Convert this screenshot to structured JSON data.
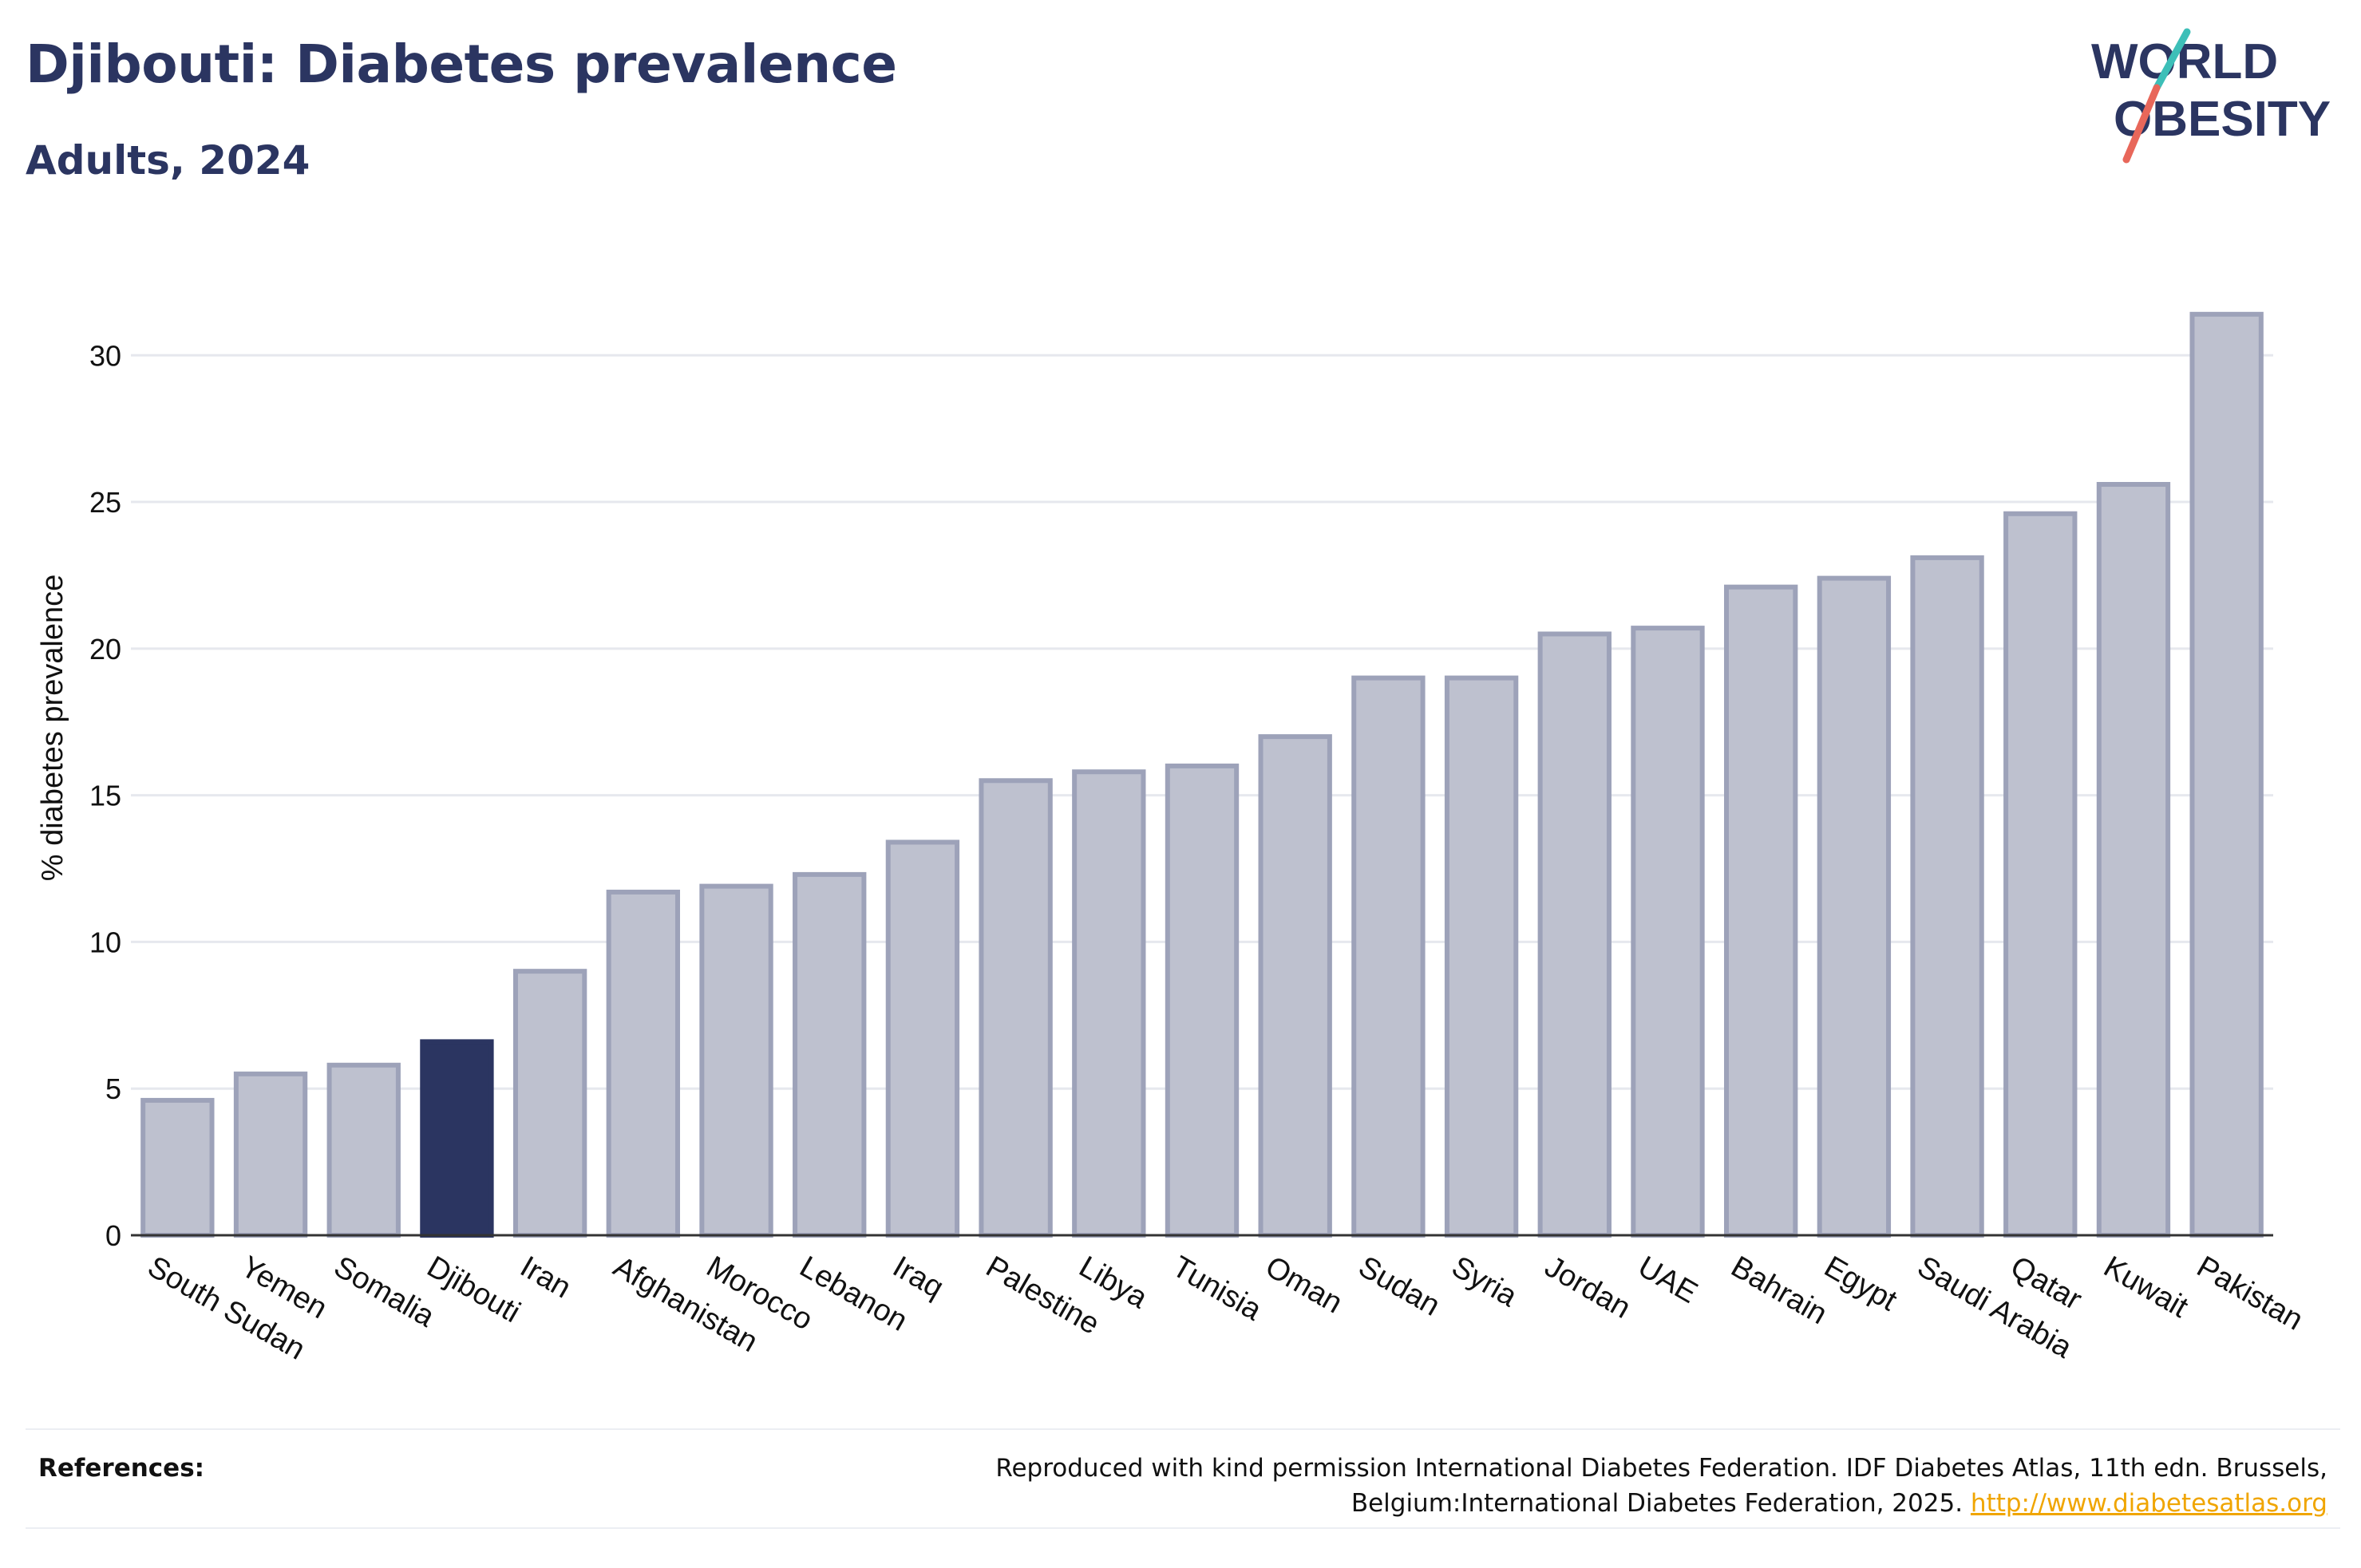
{
  "header": {
    "title": "Djibouti: Diabetes prevalence",
    "subtitle": "Adults, 2024"
  },
  "logo": {
    "line1": "WORLD",
    "line2": "OBESITY",
    "colors": {
      "text": "#2b3561",
      "slash_top": "#3dbfb8",
      "slash_bottom": "#e8675a"
    }
  },
  "colors": {
    "highlight": "#2b3561",
    "bar_fill": "#bec1cf",
    "bar_stroke": "#9da2b9",
    "grid": "#e6e8ee",
    "axis": "#333333"
  },
  "chart_data": {
    "type": "bar",
    "categories": [
      "South Sudan",
      "Yemen",
      "Somalia",
      "Djibouti",
      "Iran",
      "Afghanistan",
      "Morocco",
      "Lebanon",
      "Iraq",
      "Palestine",
      "Libya",
      "Tunisia",
      "Oman",
      "Sudan",
      "Syria",
      "Jordan",
      "UAE",
      "Bahrain",
      "Egypt",
      "Saudi Arabia",
      "Qatar",
      "Kuwait",
      "Pakistan"
    ],
    "values": [
      4.6,
      5.5,
      5.8,
      6.6,
      9.0,
      11.7,
      11.9,
      12.3,
      13.4,
      15.5,
      15.8,
      16.0,
      17.0,
      19.0,
      19.0,
      20.5,
      20.7,
      22.1,
      22.4,
      23.1,
      24.6,
      25.6,
      31.4
    ],
    "highlight": "Djibouti",
    "ylabel": "% diabetes prevalence",
    "xlabel": "",
    "ylim": [
      0,
      33
    ],
    "yticks": [
      0,
      5,
      10,
      15,
      20,
      25,
      30
    ],
    "grid": true
  },
  "references": {
    "label": "References:",
    "text": "Reproduced with kind permission International Diabetes Federation. IDF Diabetes Atlas, 11th edn. Brussels, Belgium:International Diabetes Federation, 2025.",
    "link": "http://www.diabetesatlas.org"
  }
}
